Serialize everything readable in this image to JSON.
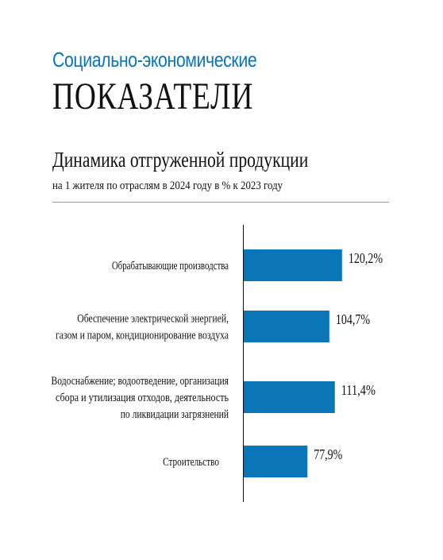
{
  "header": {
    "kicker": "Социально-экономические",
    "headline": "ПОКАЗАТЕЛИ"
  },
  "colors": {
    "accent": "#0a76b8",
    "bar": "#0a76b8",
    "text": "#111111",
    "rule": "#9a9a9a"
  },
  "chart_data": {
    "type": "bar",
    "orientation": "horizontal",
    "title": "Динамика отгруженной продукции",
    "subtitle": "на 1 жителя по отраслям в 2024 году в % к 2023 году",
    "categories": [
      [
        "Обрабатывающие производства"
      ],
      [
        "Обеспечение электрической энергией,",
        "газом и паром, кондиционирование воздуха"
      ],
      [
        "Водоснабжение; водоотведение, организация",
        "сбора и утилизация отходов, деятельность",
        "по ликвидации загрязнений"
      ],
      [
        "Строительство"
      ]
    ],
    "values": [
      120.2,
      104.7,
      111.4,
      77.9
    ],
    "value_labels": [
      "120,2%",
      "104,7%",
      "111,4%",
      "77,9%"
    ],
    "unit": "%",
    "grid": false,
    "legend": "none"
  }
}
